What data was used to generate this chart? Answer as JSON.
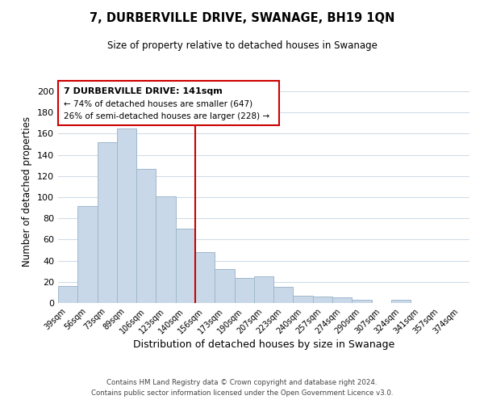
{
  "title": "7, DURBERVILLE DRIVE, SWANAGE, BH19 1QN",
  "subtitle": "Size of property relative to detached houses in Swanage",
  "xlabel": "Distribution of detached houses by size in Swanage",
  "ylabel": "Number of detached properties",
  "bar_labels": [
    "39sqm",
    "56sqm",
    "73sqm",
    "89sqm",
    "106sqm",
    "123sqm",
    "140sqm",
    "156sqm",
    "173sqm",
    "190sqm",
    "207sqm",
    "223sqm",
    "240sqm",
    "257sqm",
    "274sqm",
    "290sqm",
    "307sqm",
    "324sqm",
    "341sqm",
    "357sqm",
    "374sqm"
  ],
  "bar_values": [
    16,
    92,
    152,
    165,
    127,
    101,
    70,
    48,
    32,
    24,
    25,
    15,
    7,
    6,
    5,
    3,
    0,
    3,
    0,
    0,
    0
  ],
  "bar_color": "#c8d8e8",
  "bar_edge_color": "#a0b8cc",
  "vline_x": 6,
  "vline_color": "#cc0000",
  "ylim": [
    0,
    210
  ],
  "yticks": [
    0,
    20,
    40,
    60,
    80,
    100,
    120,
    140,
    160,
    180,
    200
  ],
  "annotation_title": "7 DURBERVILLE DRIVE: 141sqm",
  "annotation_line1": "← 74% of detached houses are smaller (647)",
  "annotation_line2": "26% of semi-detached houses are larger (228) →",
  "annotation_box_color": "#ffffff",
  "annotation_box_edge": "#cc0000",
  "footer1": "Contains HM Land Registry data © Crown copyright and database right 2024.",
  "footer2": "Contains public sector information licensed under the Open Government Licence v3.0.",
  "background_color": "#ffffff",
  "grid_color": "#d0dce8"
}
